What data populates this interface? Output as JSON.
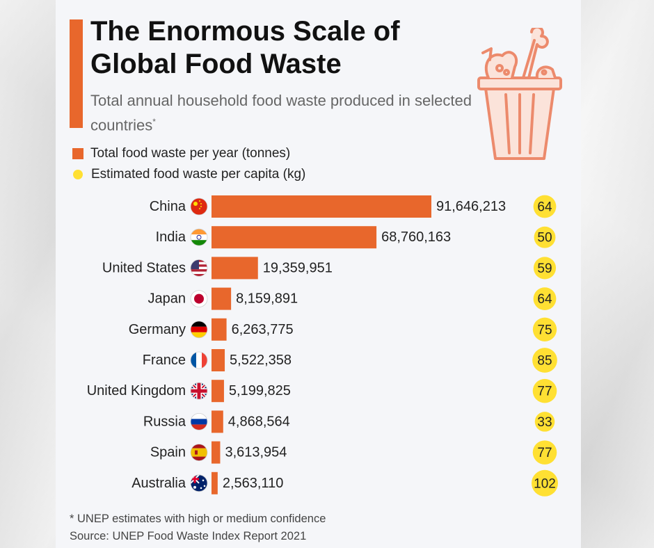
{
  "header": {
    "title": "The Enormous Scale of Global Food Waste",
    "subtitle": "Total annual household food waste produced in selected countries",
    "subtitle_mark": "*"
  },
  "legend": {
    "total_label": "Total food waste per year (tonnes)",
    "per_capita_label": "Estimated food waste per capita (kg)"
  },
  "footer": {
    "note": "* UNEP estimates with high or medium confidence",
    "source": "Source: UNEP Food Waste Index Report 2021"
  },
  "colors": {
    "bar": "#e8672c",
    "bubble": "#ffe033",
    "accent": "#e8672c"
  },
  "icons": {
    "illustration": "food-waste-bucket-icon"
  },
  "chart_data": {
    "type": "bar",
    "orientation": "horizontal",
    "categories": [
      "China",
      "India",
      "United States",
      "Japan",
      "Germany",
      "France",
      "United Kingdom",
      "Russia",
      "Spain",
      "Australia"
    ],
    "flags": [
      "china",
      "india",
      "united-states",
      "japan",
      "germany",
      "france",
      "united-kingdom",
      "russia",
      "spain",
      "australia"
    ],
    "series": [
      {
        "name": "Total food waste per year (tonnes)",
        "values": [
          91646213,
          68760163,
          19359951,
          8159891,
          6263775,
          5522358,
          5199825,
          4868564,
          3613954,
          2563110
        ],
        "labels": [
          "91,646,213",
          "68,760,163",
          "19,359,951",
          "8,159,891",
          "6,263,775",
          "5,522,358",
          "5,199,825",
          "4,868,564",
          "3,613,954",
          "2,563,110"
        ]
      },
      {
        "name": "Estimated food waste per capita (kg)",
        "values": [
          64,
          50,
          59,
          64,
          75,
          85,
          77,
          33,
          77,
          102
        ]
      }
    ],
    "grid": false,
    "legend_position": "top-left"
  }
}
